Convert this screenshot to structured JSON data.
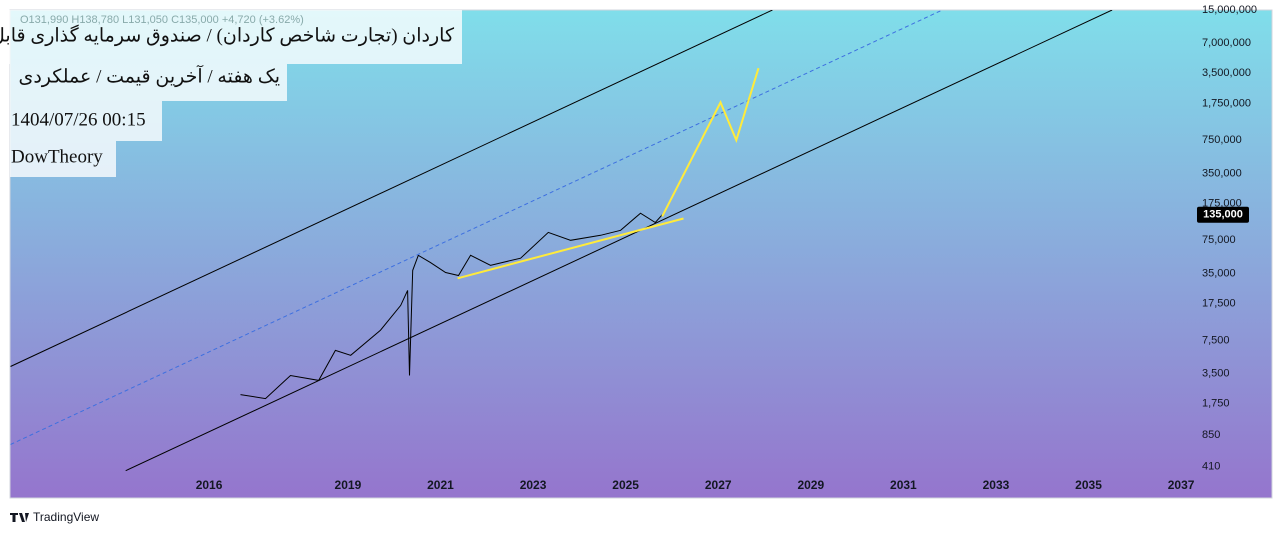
{
  "chart_data": {
    "type": "line",
    "title": "کاردان (تجارت شاخص کاردان) / صندوق سرمایه گذاری قابل معامله",
    "subtitle": "یک هفته / آخرین قیمت / عملکردی",
    "date": "1404/07/26 00:15",
    "author": "DowTheory",
    "ohlc": "O131,990 H138,780 L131,050 C135,000 +4,720 (+3.62%)",
    "footer": "TradingView",
    "log_scale": true,
    "grid": false,
    "xlim": [
      2011.7,
      2037.3
    ],
    "xticks": [
      2016,
      2019,
      2021,
      2023,
      2025,
      2027,
      2029,
      2031,
      2033,
      2035,
      2037
    ],
    "ylim": [
      200,
      15000000
    ],
    "yticks": [
      {
        "value": 410,
        "label": "410"
      },
      {
        "value": 850,
        "label": "850"
      },
      {
        "value": 1750,
        "label": "1,750"
      },
      {
        "value": 3500,
        "label": "3,500"
      },
      {
        "value": 7500,
        "label": "7,500"
      },
      {
        "value": 17500,
        "label": "17,500"
      },
      {
        "value": 35000,
        "label": "35,000"
      },
      {
        "value": 75000,
        "label": "75,000"
      },
      {
        "value": 175000,
        "label": "175,000"
      },
      {
        "value": 350000,
        "label": "350,000"
      },
      {
        "value": 750000,
        "label": "750,000"
      },
      {
        "value": 1750000,
        "label": "1,750,000"
      },
      {
        "value": 3500000,
        "label": "3,500,000"
      },
      {
        "value": 7000000,
        "label": "7,000,000"
      },
      {
        "value": 15000000,
        "label": "15,000,000"
      }
    ],
    "price_marker": {
      "value": 135000,
      "label": "135,000"
    },
    "series": [
      {
        "color": "#000000",
        "width": 1,
        "dashed": false,
        "x": [
          2016.68,
          2017.22,
          2017.76,
          2018.37,
          2018.73,
          2019.06,
          2019.7,
          2020.14,
          2020.29,
          2020.33,
          2020.4,
          2020.52,
          2020.78,
          2021.11,
          2021.39,
          2021.65,
          2022.08,
          2022.73,
          2023.33,
          2023.81,
          2024.46,
          2024.89,
          2025.32,
          2025.64,
          2025.79
        ],
        "values": [
          2160,
          1970,
          3350,
          2990,
          5960,
          5330,
          9450,
          16800,
          23700,
          3350,
          37600,
          53100,
          45200,
          35800,
          33400,
          53100,
          42200,
          49700,
          90100,
          75000,
          84200,
          94500,
          140000,
          113000,
          135000
        ]
      },
      {
        "color": "#000000",
        "width": 1,
        "dashed": false,
        "x": [
          2011.71,
          2028.17
        ],
        "values": [
          4120,
          15000000
        ]
      },
      {
        "color": "#000000",
        "width": 1,
        "dashed": false,
        "x": [
          2014.2,
          2035.51
        ],
        "values": [
          375,
          15000000
        ]
      },
      {
        "color": "#3d6fe0",
        "width": 1,
        "dashed": true,
        "x": [
          2011.71,
          2031.84
        ],
        "values": [
          684,
          15000000
        ]
      },
      {
        "color": "#ffeb3b",
        "width": 2,
        "dashed": false,
        "x": [
          2021.37,
          2026.25
        ],
        "values": [
          31300,
          124000
        ]
      },
      {
        "color": "#ffeb3b",
        "width": 2,
        "dashed": false,
        "x": [
          2025.79,
          2027.05,
          2027.39,
          2027.87
        ],
        "values": [
          130000,
          1790000,
          750000,
          3930000
        ]
      }
    ]
  }
}
